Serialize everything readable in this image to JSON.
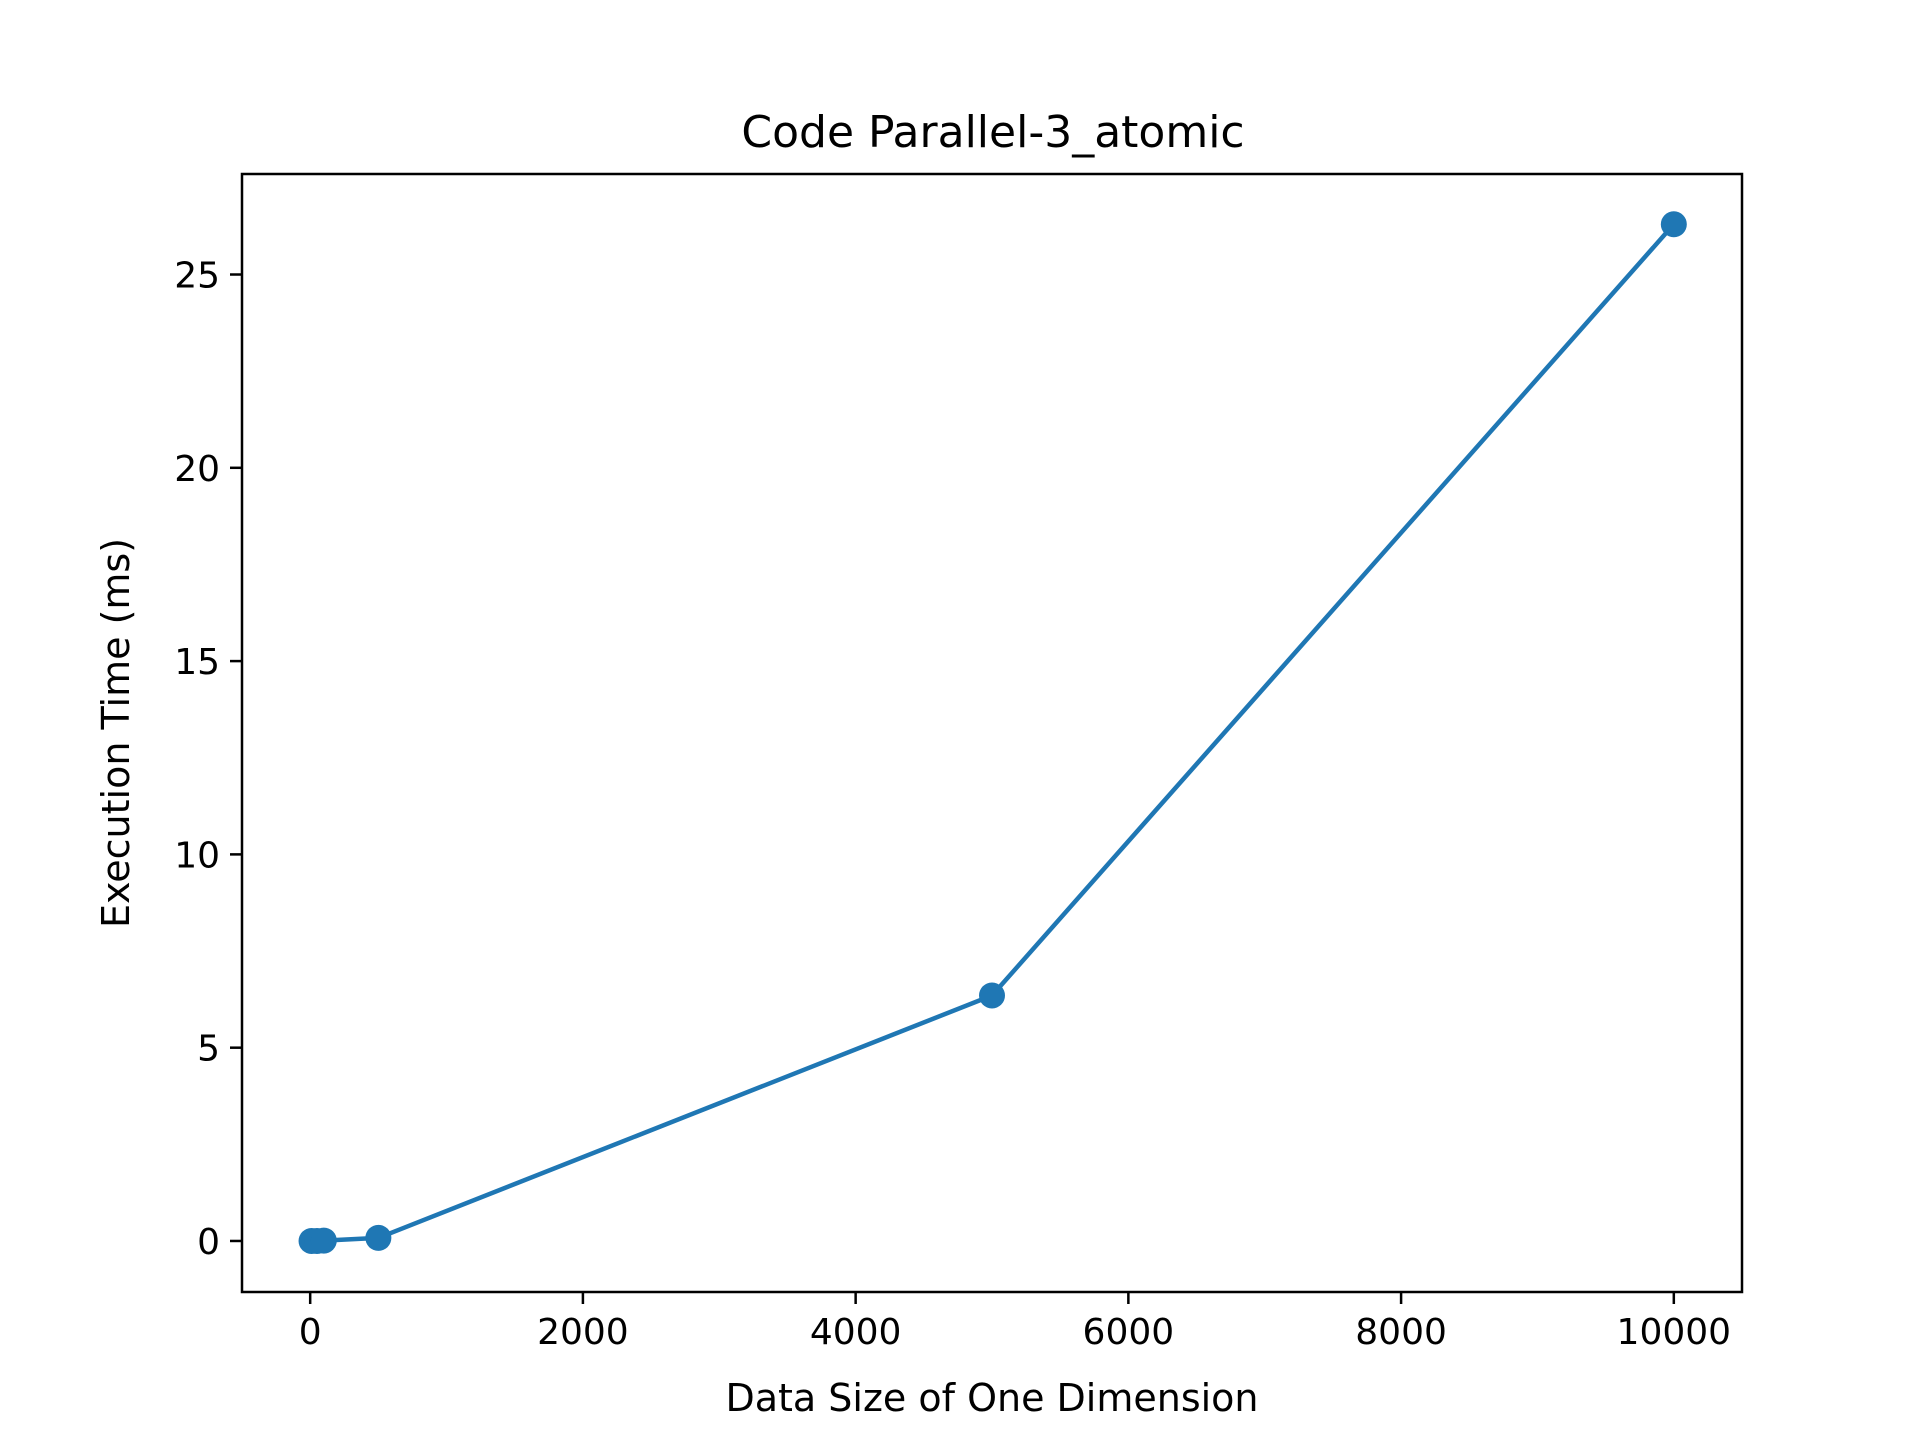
{
  "chart_data": {
    "type": "line",
    "title": "Code Parallel-3_atomic",
    "xlabel": "Data Size of One Dimension",
    "ylabel": "Execution Time (ms)",
    "xlim": [
      -500,
      10500
    ],
    "ylim": [
      -1.32,
      27.6
    ],
    "xticks": [
      0,
      2000,
      4000,
      6000,
      8000,
      10000
    ],
    "yticks": [
      0,
      5,
      10,
      15,
      20,
      25
    ],
    "grid": false,
    "series": [
      {
        "color": "#1f77b4",
        "marker": "circle",
        "x": [
          10,
          50,
          100,
          500,
          5000,
          10000
        ],
        "y": [
          0.0,
          0.0,
          0.01,
          0.08,
          6.35,
          26.3
        ]
      }
    ]
  }
}
